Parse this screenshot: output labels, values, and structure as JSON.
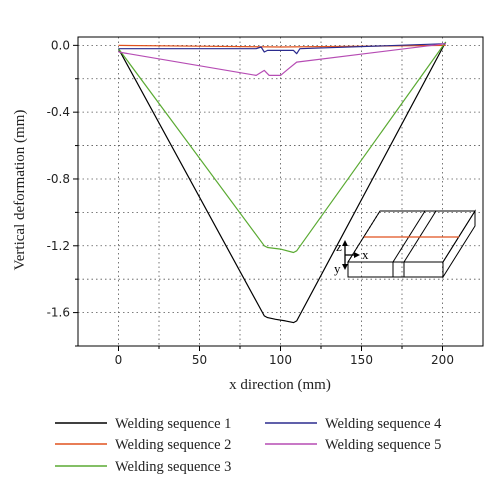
{
  "chart_data": {
    "type": "line",
    "xlabel": "x direction (mm)",
    "ylabel": "Vertical deformation (mm)",
    "xlim": [
      -25,
      225
    ],
    "ylim": [
      -1.8,
      0.05
    ],
    "xticks": [
      0,
      50,
      100,
      150,
      200
    ],
    "xtick_labels": [
      "0",
      "50",
      "100",
      "150",
      "200"
    ],
    "yticks": [
      0.0,
      -0.4,
      -0.8,
      -1.2,
      -1.6
    ],
    "ytick_labels": [
      "0.0",
      "-0.4",
      "-0.8",
      "-1.2",
      "-1.6"
    ],
    "grid": true,
    "legend_position": "bottom",
    "series": [
      {
        "name": "Welding sequence 1",
        "color": "#000000",
        "x": [
          0,
          90,
          92,
          97,
          103,
          108,
          110,
          202
        ],
        "y": [
          -0.02,
          -1.62,
          -1.63,
          -1.64,
          -1.65,
          -1.66,
          -1.65,
          0.02
        ]
      },
      {
        "name": "Welding sequence 2",
        "color": "#e0521e",
        "x": [
          0,
          50,
          100,
          150,
          202
        ],
        "y": [
          0.0,
          -0.005,
          -0.01,
          -0.005,
          0.0
        ]
      },
      {
        "name": "Welding sequence 3",
        "color": "#5aaa32",
        "x": [
          0,
          90,
          92,
          100,
          108,
          110,
          202
        ],
        "y": [
          -0.02,
          -1.2,
          -1.21,
          -1.22,
          -1.24,
          -1.23,
          0.02
        ]
      },
      {
        "name": "Welding sequence 4",
        "color": "#2b2b8e",
        "x": [
          0,
          85,
          88,
          90,
          92,
          100,
          108,
          110,
          112,
          202
        ],
        "y": [
          -0.02,
          -0.02,
          -0.01,
          -0.04,
          -0.03,
          -0.03,
          -0.03,
          -0.05,
          -0.02,
          0.01
        ]
      },
      {
        "name": "Welding sequence 5",
        "color": "#b64cb4",
        "x": [
          0,
          85,
          90,
          93,
          100,
          105,
          110,
          202
        ],
        "y": [
          -0.04,
          -0.18,
          -0.15,
          -0.18,
          -0.18,
          -0.14,
          -0.1,
          0.01
        ]
      }
    ],
    "inset_labels": {
      "z": "z",
      "x": "x",
      "y": "y"
    }
  }
}
